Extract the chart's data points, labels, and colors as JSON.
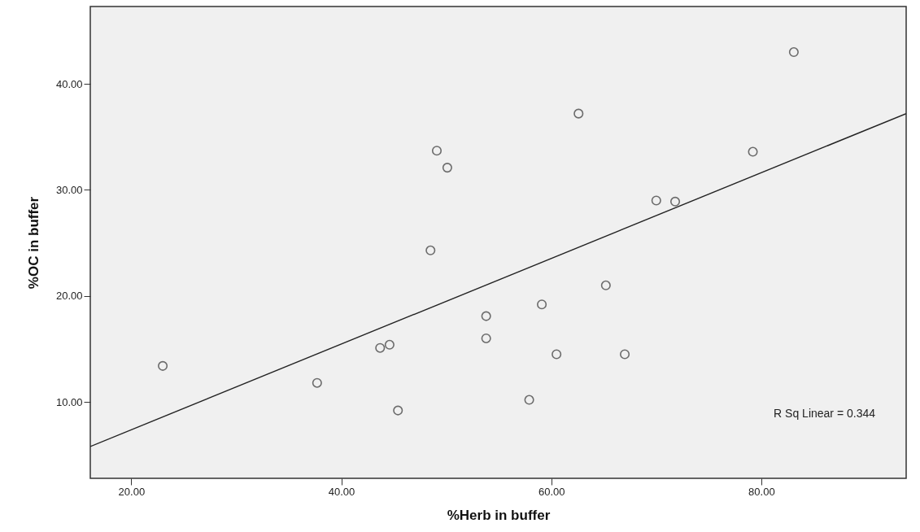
{
  "chart_data": {
    "type": "scatter",
    "xlabel": "%Herb in buffer",
    "ylabel": "%OC in buffer",
    "xlim": [
      16.1,
      93.8
    ],
    "ylim": [
      2.8,
      47.3
    ],
    "xticks": [
      {
        "value": 20,
        "label": "20.00"
      },
      {
        "value": 40,
        "label": "40.00"
      },
      {
        "value": 60,
        "label": "60.00"
      },
      {
        "value": 80,
        "label": "80.00"
      }
    ],
    "yticks": [
      {
        "value": 10,
        "label": "10.00"
      },
      {
        "value": 20,
        "label": "20.00"
      },
      {
        "value": 30,
        "label": "30.00"
      },
      {
        "value": 40,
        "label": "40.00"
      }
    ],
    "grid": false,
    "marker": "circle",
    "series": [
      {
        "color": "#333333",
        "x": [
          49.1,
          50.1,
          48.5,
          62.6,
          83.1,
          79.2,
          70.0,
          71.8,
          23.0,
          37.7,
          43.7,
          44.6,
          45.4,
          53.8,
          53.8,
          65.2,
          59.1,
          60.5,
          67.0,
          57.9
        ],
        "values": [
          33.7,
          32.1,
          24.3,
          37.2,
          43.0,
          33.6,
          29.0,
          28.9,
          13.4,
          11.8,
          15.1,
          15.4,
          9.2,
          18.1,
          16.0,
          21.0,
          19.2,
          14.5,
          14.5,
          10.2
        ]
      },
      {
        "type": "line",
        "marker": "none",
        "color": "#222222",
        "x": [
          16.1,
          93.8
        ],
        "values": [
          5.8,
          37.2
        ]
      }
    ],
    "annotations": [
      "R Sq Linear = 0.344"
    ]
  }
}
